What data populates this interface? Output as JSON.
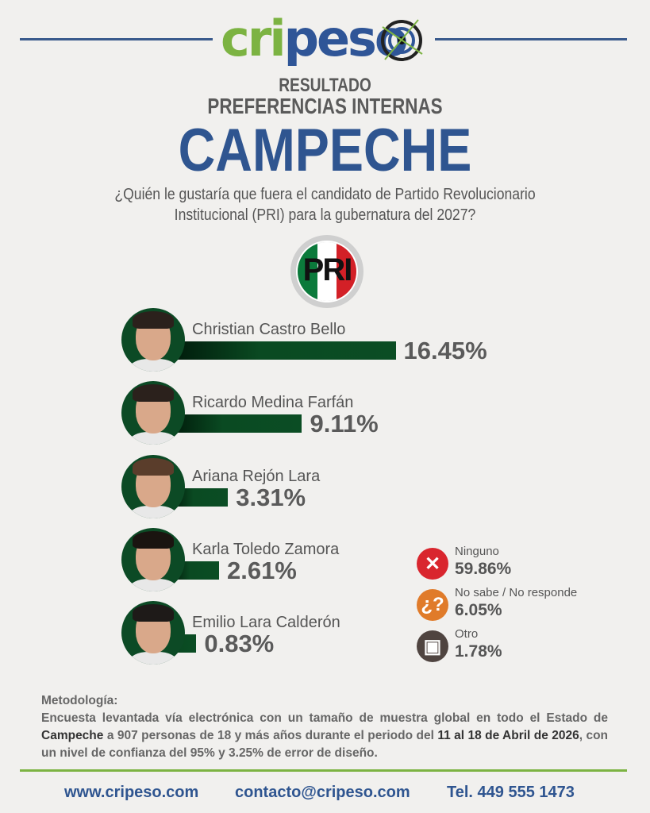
{
  "brand": {
    "logo_text_green": "cri",
    "logo_text_blue": "peso",
    "accent_green": "#7cb342",
    "accent_blue": "#2f5590"
  },
  "header": {
    "line1": "RESULTADO",
    "line2": "PREFERENCIAS INTERNAS",
    "state": "CAMPECHE",
    "question_line1": "¿Quién le gustaría que fuera el candidato de Partido Revolucionario",
    "question_line2": "Institucional (PRI) para la gubernatura del 2027?"
  },
  "party": {
    "logo_text": "PRI",
    "colors": [
      "#0b7a3b",
      "#ffffff",
      "#d32027"
    ]
  },
  "chart_data": {
    "type": "bar",
    "orientation": "horizontal",
    "categories": [
      "Christian Castro Bello",
      "Ricardo Medina Farfán",
      "Ariana Rejón Lara",
      "Karla Toledo Zamora",
      "Emilio Lara Calderón"
    ],
    "values": [
      16.45,
      9.11,
      3.31,
      2.61,
      0.83
    ],
    "labels": [
      "16.45%",
      "9.11%",
      "3.31%",
      "2.61%",
      "0.83%"
    ],
    "unit": "%",
    "bar_color": "#0b4d24",
    "grid": false
  },
  "others": [
    {
      "label": "Ninguno",
      "value": "59.86%",
      "icon": "x-icon",
      "color": "#d9262e"
    },
    {
      "label": "No sabe / No responde",
      "value": "6.05%",
      "icon": "question-icon",
      "color": "#e07b2a"
    },
    {
      "label": "Otro",
      "value": "1.78%",
      "icon": "ballot-icon",
      "color": "#4f4440"
    }
  ],
  "methodology": {
    "title": "Metodología:",
    "p1": "Encuesta levantada vía electrónica con un tamaño de muestra global en todo el Estado de ",
    "b1": "Campeche",
    "p2": " a 907 personas de 18 y más años durante el periodo del ",
    "b2": "11 al 18 de Abril de 2026",
    "p3": ", con un nivel de confianza del 95% y 3.25% de error de diseño."
  },
  "footer": {
    "website": "www.cripeso.com",
    "email": "contacto@cripeso.com",
    "phone": "Tel. 449 555 1473"
  }
}
